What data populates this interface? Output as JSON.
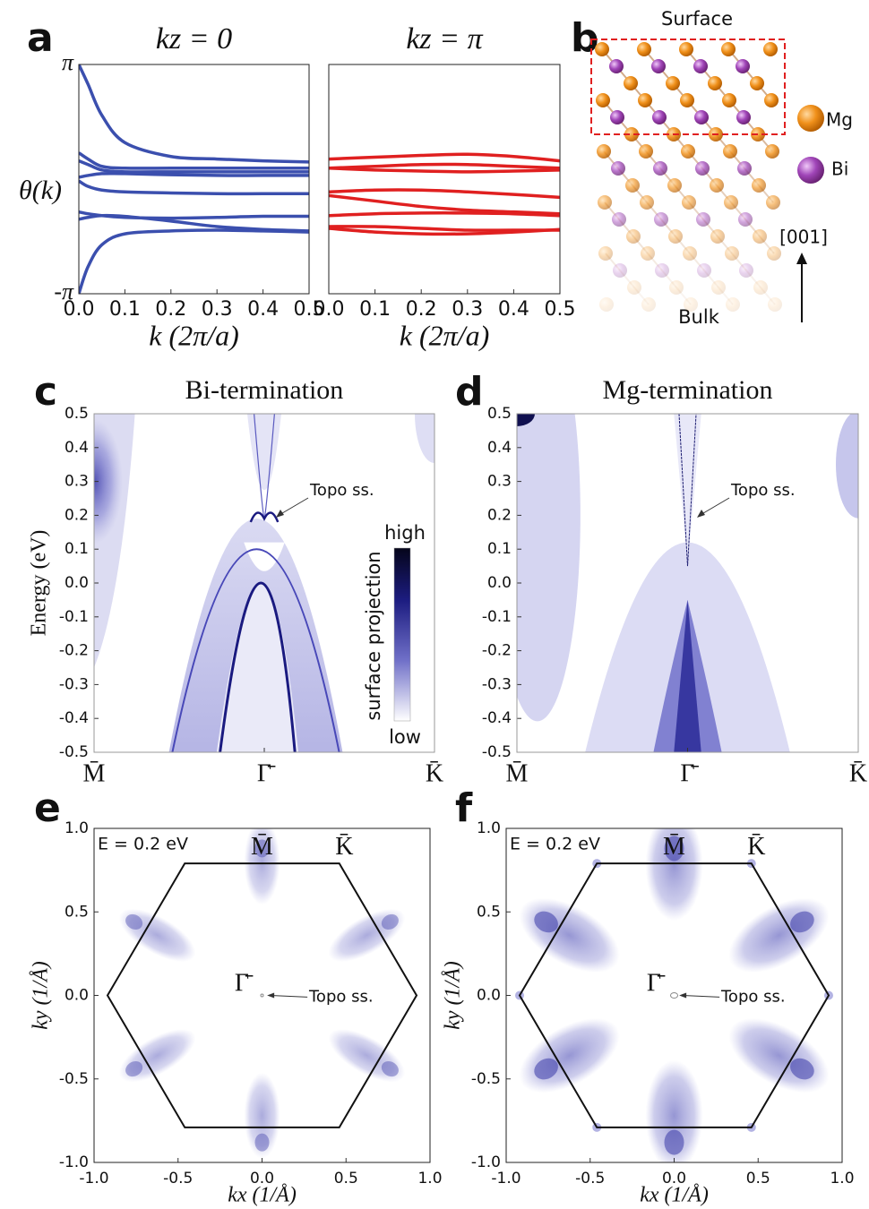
{
  "diagram": {
    "panel_label": "b",
    "surface": "Surface",
    "bulk": "Bulk",
    "direction": "[001]",
    "legend": [
      "Mg",
      "Bi"
    ]
  },
  "chart_data": [
    {
      "type": "line",
      "panel_label": "a",
      "title": "kz = 0",
      "xlabel": "k (2π/a)",
      "ylabel": "θ(k)",
      "x": [
        0,
        0.02,
        0.05,
        0.1,
        0.2,
        0.3,
        0.4,
        0.5
      ],
      "xlim": [
        0,
        0.5
      ],
      "xticks": [
        {
          "value": 0,
          "label": "0.0"
        },
        0.1,
        0.2,
        0.3,
        0.4,
        0.5
      ],
      "ylim": [
        -3.1416,
        3.1416
      ],
      "yticks": [
        {
          "value": -3.1416,
          "label": "-π"
        },
        {
          "value": 3.1416,
          "label": "π"
        }
      ],
      "series": [
        {
          "color": "#3b4fae",
          "values": [
            3.14,
            2.6,
            1.75,
            1.0,
            0.62,
            0.55,
            0.5,
            0.47
          ]
        },
        {
          "color": "#3b4fae",
          "values": [
            0.72,
            0.55,
            0.35,
            0.3,
            0.3,
            0.3,
            0.3,
            0.3
          ]
        },
        {
          "color": "#3b4fae",
          "values": [
            0.5,
            0.4,
            0.25,
            0.2,
            0.2,
            0.2,
            0.2,
            0.2
          ]
        },
        {
          "color": "#3b4fae",
          "values": [
            0.05,
            0.1,
            0.15,
            0.15,
            0.12,
            0.1,
            0.1,
            0.1
          ]
        },
        {
          "color": "#3b4fae",
          "values": [
            -0.05,
            -0.2,
            -0.3,
            -0.35,
            -0.38,
            -0.4,
            -0.4,
            -0.4
          ]
        },
        {
          "color": "#3b4fae",
          "values": [
            -0.9,
            -0.95,
            -1.0,
            -1.05,
            -1.07,
            -1.05,
            -1.02,
            -1.02
          ]
        },
        {
          "color": "#3b4fae",
          "values": [
            -1.1,
            -1.05,
            -1.0,
            -1.02,
            -1.15,
            -1.3,
            -1.38,
            -1.42
          ]
        },
        {
          "color": "#3b4fae",
          "values": [
            -3.14,
            -2.4,
            -1.8,
            -1.5,
            -1.42,
            -1.4,
            -1.42,
            -1.45
          ]
        }
      ]
    },
    {
      "type": "line",
      "title": "kz = π",
      "xlabel": "k (2π/a)",
      "x": [
        0,
        0.1,
        0.2,
        0.3,
        0.4,
        0.5
      ],
      "xlim": [
        0,
        0.5
      ],
      "xticks": [
        {
          "value": 0,
          "label": "0.0"
        },
        0.1,
        0.2,
        0.3,
        0.4,
        0.5
      ],
      "ylim": [
        -3.1416,
        3.1416
      ],
      "series": [
        {
          "color": "#e02020",
          "values": [
            0.55,
            0.6,
            0.65,
            0.68,
            0.62,
            0.5
          ]
        },
        {
          "color": "#e02020",
          "values": [
            0.3,
            0.35,
            0.4,
            0.4,
            0.35,
            0.3
          ]
        },
        {
          "color": "#e02020",
          "values": [
            0.3,
            0.25,
            0.22,
            0.2,
            0.22,
            0.25
          ]
        },
        {
          "color": "#e02020",
          "values": [
            -0.35,
            -0.3,
            -0.3,
            -0.35,
            -0.42,
            -0.5
          ]
        },
        {
          "color": "#e02020",
          "values": [
            -0.45,
            -0.6,
            -0.75,
            -0.85,
            -0.9,
            -0.95
          ]
        },
        {
          "color": "#e02020",
          "values": [
            -1.0,
            -0.95,
            -0.93,
            -0.93,
            -0.95,
            -1.0
          ]
        },
        {
          "color": "#e02020",
          "values": [
            -1.3,
            -1.3,
            -1.35,
            -1.4,
            -1.4,
            -1.4
          ]
        },
        {
          "color": "#e02020",
          "values": [
            -1.35,
            -1.45,
            -1.5,
            -1.5,
            -1.45,
            -1.38
          ]
        }
      ]
    },
    {
      "type": "band_structure",
      "panel_label": "c",
      "title": "Bi-termination",
      "ylabel": "Energy (eV)",
      "categories": [
        "M̄",
        "Γ̄",
        "K̄"
      ],
      "ylim": [
        -0.5,
        0.5
      ],
      "yticks": [
        -0.5,
        -0.4,
        -0.3,
        -0.2,
        -0.1,
        {
          "value": 0,
          "label": "0.0"
        },
        0.1,
        0.2,
        0.3,
        0.4,
        0.5
      ],
      "annotation": "Topo ss.",
      "colorbar": {
        "high": "high",
        "low": "low",
        "label": "surface projection"
      }
    },
    {
      "type": "band_structure",
      "panel_label": "d",
      "title": "Mg-termination",
      "categories": [
        "M̄",
        "Γ̄",
        "K̄"
      ],
      "ylim": [
        -0.5,
        0.5
      ],
      "yticks": [
        -0.5,
        -0.4,
        -0.3,
        -0.2,
        -0.1,
        {
          "value": 0,
          "label": "0.0"
        },
        0.1,
        0.2,
        0.3,
        0.4,
        0.5
      ],
      "annotation": "Topo ss."
    },
    {
      "type": "fermi_surface",
      "panel_label": "e",
      "energy_label": "E = 0.2 eV",
      "xlabel": "kx (1/Å)",
      "ylabel": "ky (1/Å)",
      "xlim": [
        -1,
        1
      ],
      "ylim": [
        -1,
        1
      ],
      "xticks": [
        {
          "value": -1,
          "label": "-1.0"
        },
        -0.5,
        {
          "value": 0,
          "label": "0.0"
        },
        0.5,
        {
          "value": 1,
          "label": "1.0"
        }
      ],
      "yticks": [
        {
          "value": -1,
          "label": "-1.0"
        },
        -0.5,
        {
          "value": 0,
          "label": "0.0"
        },
        0.5,
        {
          "value": 1,
          "label": "1.0"
        }
      ],
      "point_labels": [
        "M̄",
        "K̄",
        "Γ̄"
      ],
      "annotation": "Topo ss.",
      "brillouin_zone": {
        "x": [
          0.46,
          0.92,
          0.46,
          -0.46,
          -0.92,
          -0.46
        ],
        "y": [
          0.79,
          0,
          -0.79,
          -0.79,
          0,
          0.79
        ]
      }
    },
    {
      "type": "fermi_surface",
      "panel_label": "f",
      "energy_label": "E = 0.2 eV",
      "xlabel": "kx (1/Å)",
      "ylabel": "ky (1/Å)",
      "xlim": [
        -1,
        1
      ],
      "ylim": [
        -1,
        1
      ],
      "xticks": [
        {
          "value": -1,
          "label": "-1.0"
        },
        -0.5,
        {
          "value": 0,
          "label": "0.0"
        },
        0.5,
        {
          "value": 1,
          "label": "1.0"
        }
      ],
      "yticks": [
        {
          "value": -1,
          "label": "-1.0"
        },
        -0.5,
        {
          "value": 0,
          "label": "0.0"
        },
        0.5,
        {
          "value": 1,
          "label": "1.0"
        }
      ],
      "point_labels": [
        "M̄",
        "K̄",
        "Γ̄"
      ],
      "annotation": "Topo ss.",
      "brillouin_zone": {
        "x": [
          0.46,
          0.92,
          0.46,
          -0.46,
          -0.92,
          -0.46
        ],
        "y": [
          0.79,
          0,
          -0.79,
          -0.79,
          0,
          0.79
        ]
      }
    }
  ]
}
